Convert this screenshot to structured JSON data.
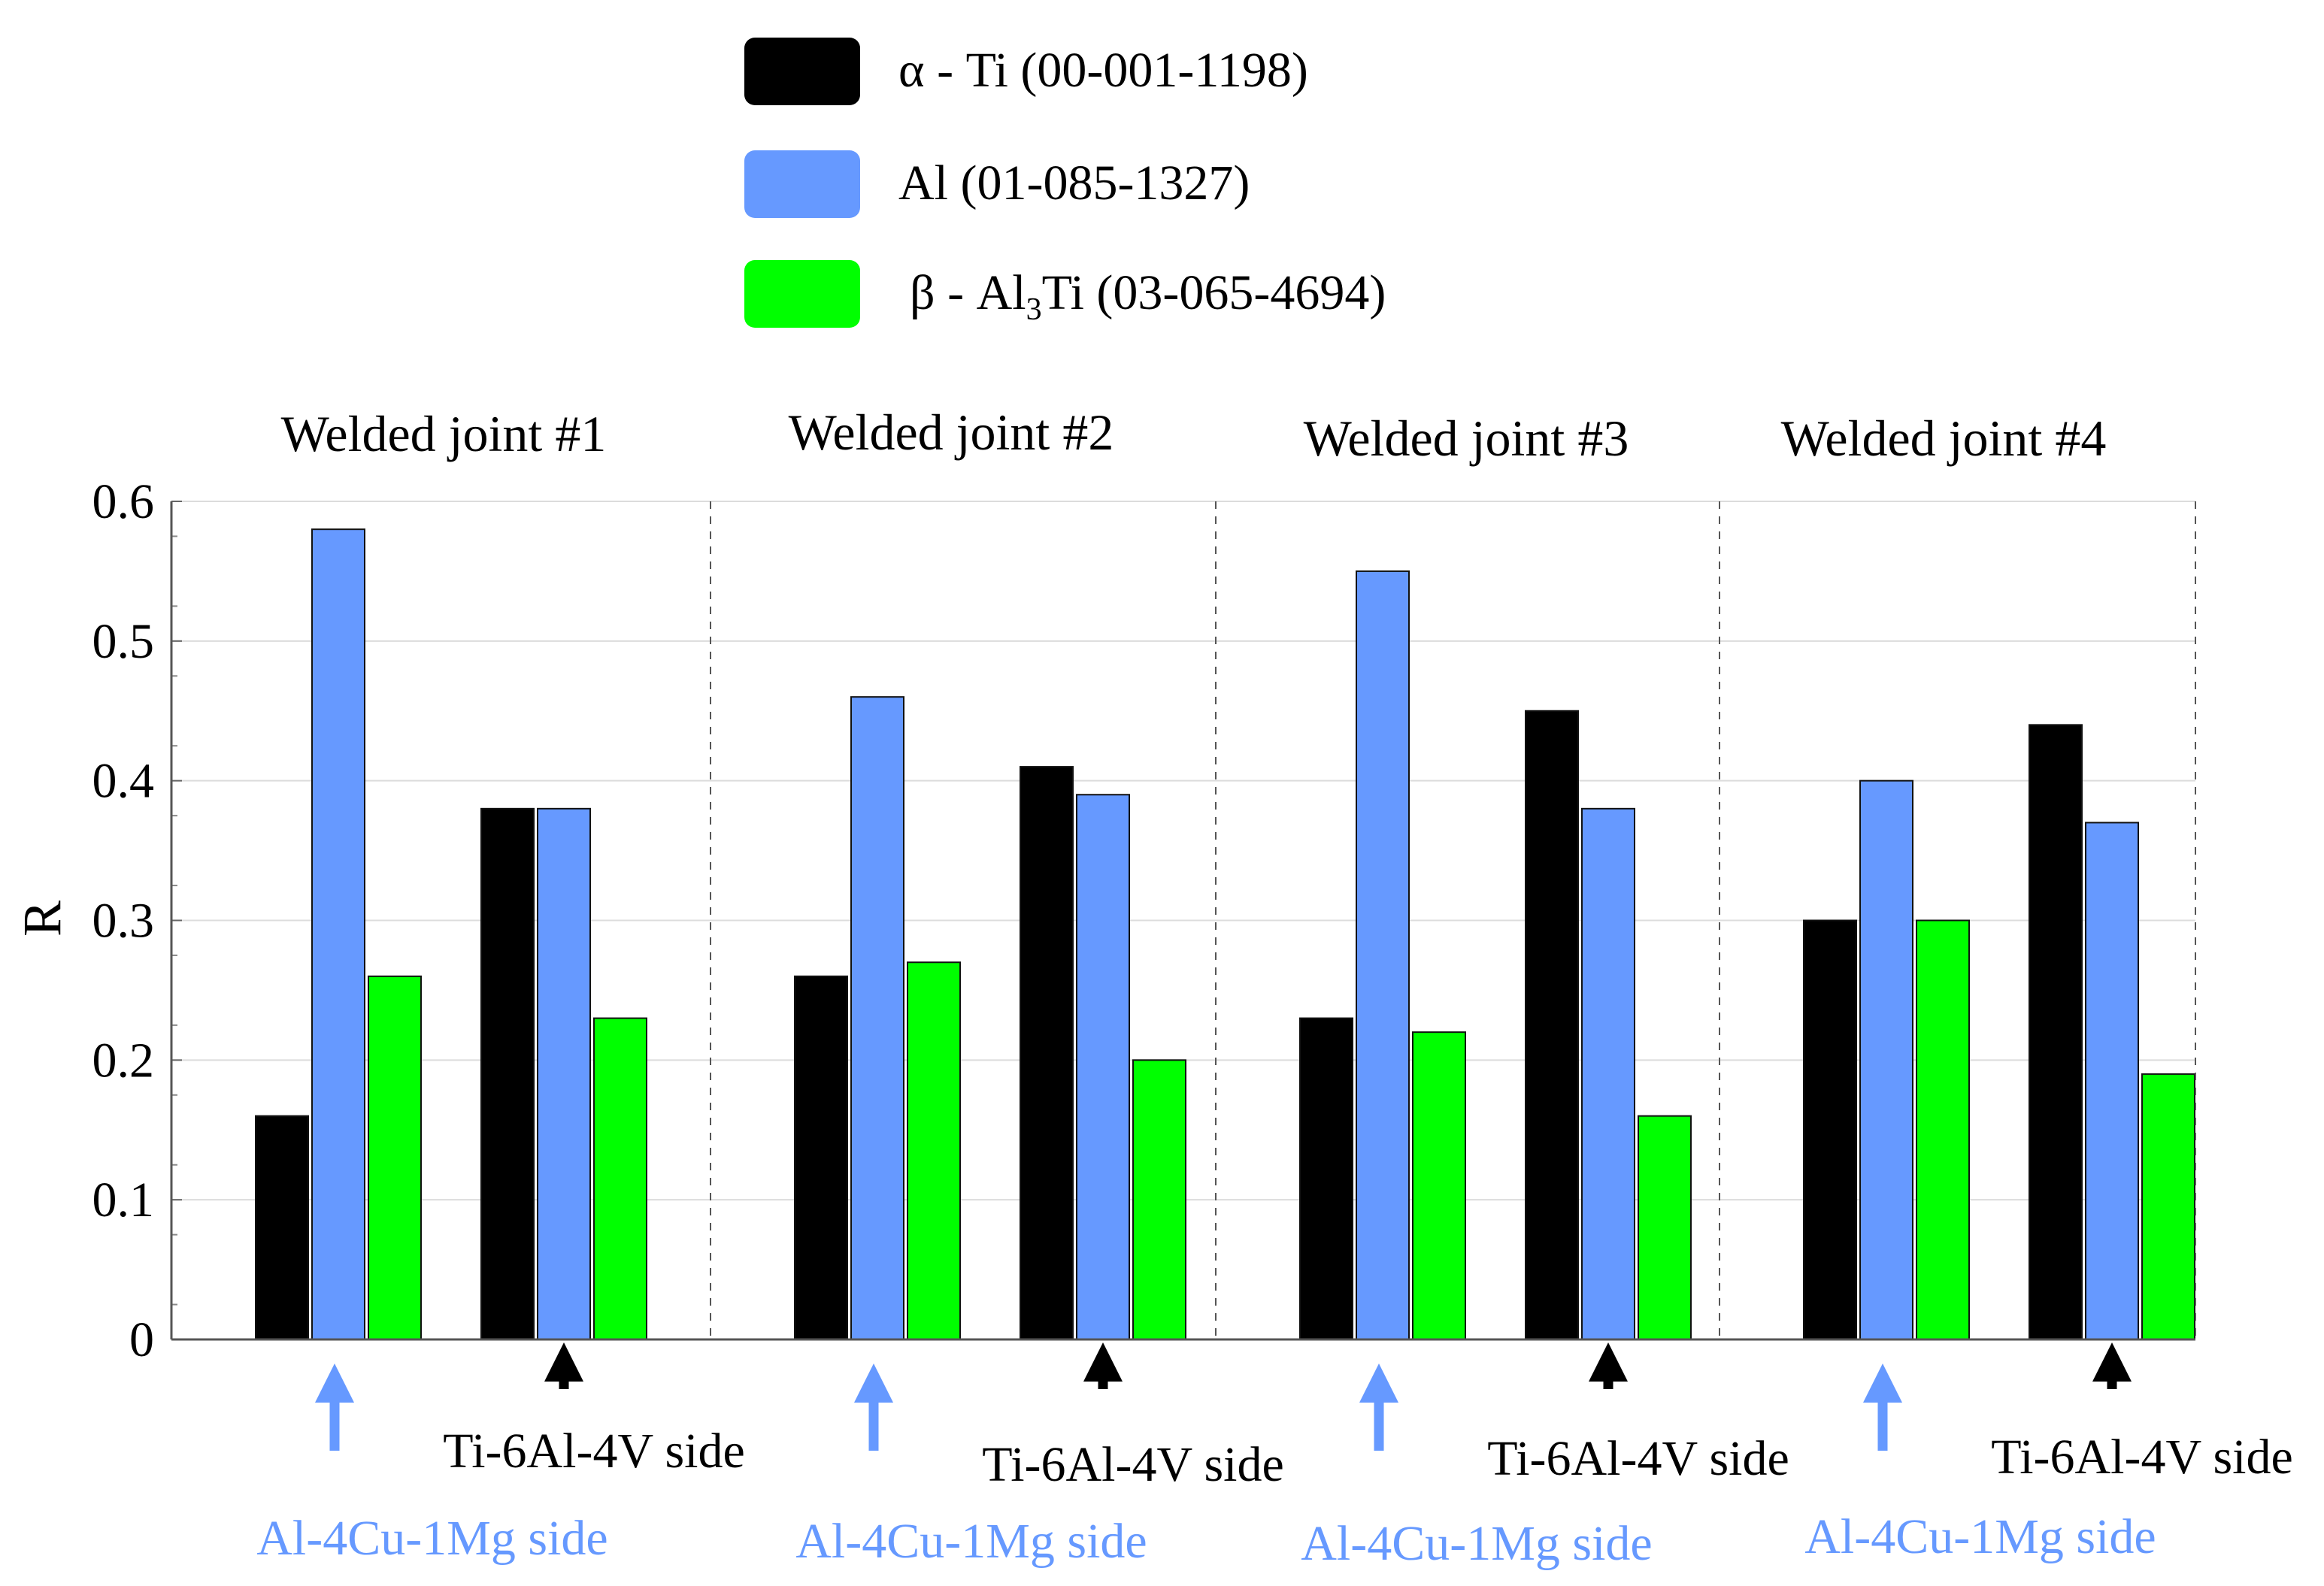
{
  "chart_data": {
    "type": "bar",
    "ylabel": "R",
    "ylim": [
      0,
      0.6
    ],
    "yticks": [
      "0",
      "0.1",
      "0.2",
      "0.3",
      "0.4",
      "0.5",
      "0.6"
    ],
    "grid": true,
    "legend_position": "top",
    "legend": [
      {
        "greek": "α",
        "label": " - Ti (00-001-1198)",
        "color": "#000000"
      },
      {
        "greek": "",
        "label": "Al (01-085-1327)",
        "color": "#6699ff"
      },
      {
        "greek": "β",
        "label": " - Al",
        "sub": "3",
        "tail": "Ti (03-065-4694)",
        "color": "#00ff00"
      }
    ],
    "series_names": [
      "α - Ti (00-001-1198)",
      "Al (01-085-1327)",
      "β - Al3Ti (03-065-4694)"
    ],
    "series_colors": [
      "#000000",
      "#6699ff",
      "#00ff00"
    ],
    "joints": [
      {
        "title": "Welded joint #1",
        "groups": [
          {
            "side_label": "Al-4Cu-1Mg side",
            "side_color": "#6699ff",
            "values": [
              0.16,
              0.58,
              0.26
            ]
          },
          {
            "side_label": "Ti-6Al-4V side",
            "side_color": "#000000",
            "values": [
              0.38,
              0.38,
              0.23
            ]
          }
        ]
      },
      {
        "title": "Welded joint #2",
        "groups": [
          {
            "side_label": "Al-4Cu-1Mg side",
            "side_color": "#6699ff",
            "values": [
              0.26,
              0.46,
              0.27
            ]
          },
          {
            "side_label": "Ti-6Al-4V side",
            "side_color": "#000000",
            "values": [
              0.41,
              0.39,
              0.2
            ]
          }
        ]
      },
      {
        "title": "Welded joint #3",
        "groups": [
          {
            "side_label": "Al-4Cu-1Mg side",
            "side_color": "#6699ff",
            "values": [
              0.23,
              0.55,
              0.22
            ]
          },
          {
            "side_label": "Ti-6Al-4V side",
            "side_color": "#000000",
            "values": [
              0.45,
              0.38,
              0.16
            ]
          }
        ]
      },
      {
        "title": "Welded joint #4",
        "groups": [
          {
            "side_label": "Al-4Cu-1Mg side",
            "side_color": "#6699ff",
            "values": [
              0.3,
              0.4,
              0.3
            ]
          },
          {
            "side_label": "Ti-6Al-4V side",
            "side_color": "#000000",
            "values": [
              0.44,
              0.37,
              0.19
            ]
          }
        ]
      }
    ]
  }
}
